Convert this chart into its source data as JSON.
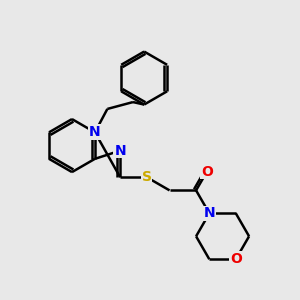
{
  "background_color": "#e8e8e8",
  "bond_color": "#000000",
  "bond_width": 1.8,
  "atom_colors": {
    "N": "#0000ee",
    "O": "#ee0000",
    "S": "#ccaa00",
    "C": "#000000"
  },
  "font_size": 10
}
